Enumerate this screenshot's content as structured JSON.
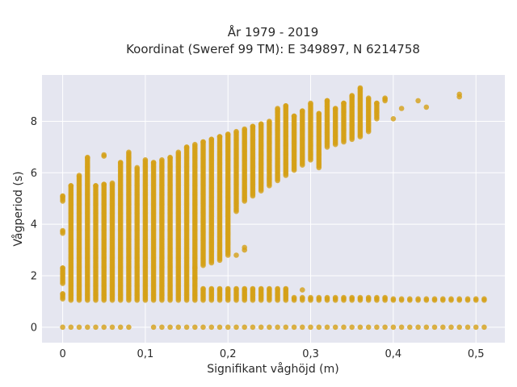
{
  "chart_data": {
    "type": "scatter",
    "title_line1": "År 1979 - 2019",
    "title_line2": "Koordinat (Sweref 99 TM): E 349897, N 6214758",
    "xlabel": "Signifikant våghöjd (m)",
    "ylabel": "Vågperiod (s)",
    "xlim": [
      -0.025,
      0.535
    ],
    "ylim": [
      -0.6,
      9.8
    ],
    "x_ticks": [
      0,
      0.1,
      0.2,
      0.3,
      0.4,
      0.5
    ],
    "x_tick_labels": [
      "0",
      "0,1",
      "0,2",
      "0,3",
      "0,4",
      "0,5"
    ],
    "y_ticks": [
      0,
      2,
      4,
      6,
      8
    ],
    "y_tick_labels": [
      "0",
      "2",
      "4",
      "6",
      "8"
    ],
    "grid": true,
    "plot_background": "#e5e6f0",
    "grid_color": "#ffffff",
    "marker_color": "#d4a017",
    "x_step": 0.01,
    "columns": [
      {
        "x": 0.0,
        "ranges": [
          [
            1.1,
            1.3
          ],
          [
            1.7,
            2.3
          ],
          [
            3.65,
            3.75
          ],
          [
            4.9,
            5.1
          ]
        ]
      },
      {
        "x": 0.01,
        "ranges": [
          [
            1.05,
            5.5
          ]
        ]
      },
      {
        "x": 0.02,
        "ranges": [
          [
            1.05,
            5.9
          ]
        ]
      },
      {
        "x": 0.03,
        "ranges": [
          [
            1.05,
            6.6
          ]
        ]
      },
      {
        "x": 0.04,
        "ranges": [
          [
            1.05,
            5.5
          ]
        ]
      },
      {
        "x": 0.05,
        "ranges": [
          [
            1.05,
            5.55
          ],
          [
            6.65,
            6.7
          ]
        ]
      },
      {
        "x": 0.06,
        "ranges": [
          [
            1.05,
            5.6
          ]
        ]
      },
      {
        "x": 0.07,
        "ranges": [
          [
            1.05,
            6.4
          ]
        ]
      },
      {
        "x": 0.08,
        "ranges": [
          [
            1.05,
            6.8
          ]
        ]
      },
      {
        "x": 0.09,
        "ranges": [
          [
            1.05,
            6.2
          ]
        ]
      },
      {
        "x": 0.1,
        "ranges": [
          [
            1.05,
            6.5
          ]
        ]
      },
      {
        "x": 0.11,
        "ranges": [
          [
            1.05,
            6.4
          ]
        ]
      },
      {
        "x": 0.12,
        "ranges": [
          [
            1.05,
            6.5
          ]
        ]
      },
      {
        "x": 0.13,
        "ranges": [
          [
            1.05,
            6.6
          ]
        ]
      },
      {
        "x": 0.14,
        "ranges": [
          [
            1.05,
            6.8
          ]
        ]
      },
      {
        "x": 0.15,
        "ranges": [
          [
            1.05,
            7.0
          ]
        ]
      },
      {
        "x": 0.16,
        "ranges": [
          [
            1.05,
            7.1
          ]
        ]
      },
      {
        "x": 0.17,
        "ranges": [
          [
            1.05,
            1.5
          ],
          [
            2.4,
            7.2
          ]
        ]
      },
      {
        "x": 0.18,
        "ranges": [
          [
            1.05,
            1.5
          ],
          [
            2.5,
            7.3
          ]
        ]
      },
      {
        "x": 0.19,
        "ranges": [
          [
            1.05,
            1.5
          ],
          [
            2.6,
            7.4
          ]
        ]
      },
      {
        "x": 0.2,
        "ranges": [
          [
            1.05,
            1.5
          ],
          [
            2.8,
            7.5
          ]
        ]
      },
      {
        "x": 0.21,
        "ranges": [
          [
            1.05,
            1.5
          ],
          [
            4.5,
            7.6
          ]
        ]
      },
      {
        "x": 0.22,
        "ranges": [
          [
            1.05,
            1.5
          ],
          [
            4.9,
            7.7
          ]
        ]
      },
      {
        "x": 0.23,
        "ranges": [
          [
            1.05,
            1.5
          ],
          [
            5.1,
            7.8
          ]
        ]
      },
      {
        "x": 0.24,
        "ranges": [
          [
            1.05,
            1.5
          ],
          [
            5.3,
            7.9
          ]
        ]
      },
      {
        "x": 0.25,
        "ranges": [
          [
            1.05,
            1.5
          ],
          [
            5.5,
            8.0
          ]
        ]
      },
      {
        "x": 0.26,
        "ranges": [
          [
            1.05,
            1.5
          ],
          [
            5.7,
            8.5
          ]
        ]
      },
      {
        "x": 0.27,
        "ranges": [
          [
            1.05,
            1.5
          ],
          [
            5.9,
            8.6
          ]
        ]
      },
      {
        "x": 0.28,
        "ranges": [
          [
            1.05,
            1.15
          ],
          [
            6.1,
            8.2
          ]
        ]
      },
      {
        "x": 0.29,
        "ranges": [
          [
            1.05,
            1.15
          ],
          [
            6.3,
            8.4
          ]
        ]
      },
      {
        "x": 0.3,
        "ranges": [
          [
            1.05,
            1.15
          ],
          [
            6.5,
            8.7
          ]
        ]
      },
      {
        "x": 0.31,
        "ranges": [
          [
            1.05,
            1.15
          ],
          [
            6.2,
            8.3
          ]
        ]
      },
      {
        "x": 0.32,
        "ranges": [
          [
            1.05,
            1.15
          ],
          [
            7.0,
            8.8
          ]
        ]
      },
      {
        "x": 0.33,
        "ranges": [
          [
            1.05,
            1.15
          ],
          [
            7.1,
            8.5
          ]
        ]
      },
      {
        "x": 0.34,
        "ranges": [
          [
            1.05,
            1.15
          ],
          [
            7.2,
            8.7
          ]
        ]
      },
      {
        "x": 0.35,
        "ranges": [
          [
            1.05,
            1.15
          ],
          [
            7.3,
            9.0
          ]
        ]
      },
      {
        "x": 0.36,
        "ranges": [
          [
            1.05,
            1.15
          ],
          [
            7.4,
            9.3
          ]
        ]
      },
      {
        "x": 0.37,
        "ranges": [
          [
            1.05,
            1.15
          ],
          [
            7.6,
            8.9
          ]
        ]
      },
      {
        "x": 0.38,
        "ranges": [
          [
            1.05,
            1.15
          ],
          [
            8.1,
            8.7
          ]
        ]
      },
      {
        "x": 0.39,
        "ranges": [
          [
            1.05,
            1.15
          ],
          [
            8.8,
            8.9
          ]
        ]
      },
      {
        "x": 0.4,
        "ranges": [
          [
            1.05,
            1.1
          ]
        ]
      },
      {
        "x": 0.41,
        "ranges": [
          [
            1.05,
            1.1
          ]
        ]
      },
      {
        "x": 0.42,
        "ranges": [
          [
            1.05,
            1.1
          ]
        ]
      },
      {
        "x": 0.43,
        "ranges": [
          [
            1.05,
            1.1
          ]
        ]
      },
      {
        "x": 0.44,
        "ranges": [
          [
            1.05,
            1.1
          ]
        ]
      },
      {
        "x": 0.45,
        "ranges": [
          [
            1.05,
            1.1
          ]
        ]
      },
      {
        "x": 0.46,
        "ranges": [
          [
            1.05,
            1.1
          ]
        ]
      },
      {
        "x": 0.47,
        "ranges": [
          [
            1.05,
            1.1
          ]
        ]
      },
      {
        "x": 0.48,
        "ranges": [
          [
            1.05,
            1.1
          ]
        ]
      },
      {
        "x": 0.49,
        "ranges": [
          [
            1.05,
            1.1
          ]
        ]
      },
      {
        "x": 0.5,
        "ranges": [
          [
            1.05,
            1.1
          ]
        ]
      },
      {
        "x": 0.51,
        "ranges": [
          [
            1.05,
            1.1
          ]
        ]
      }
    ],
    "extra_points": [
      [
        0.0,
        0.0
      ],
      [
        0.01,
        0.0
      ],
      [
        0.02,
        0.0
      ],
      [
        0.03,
        0.0
      ],
      [
        0.04,
        0.0
      ],
      [
        0.05,
        0.0
      ],
      [
        0.06,
        0.0
      ],
      [
        0.07,
        0.0
      ],
      [
        0.08,
        0.0
      ],
      [
        0.11,
        0.0
      ],
      [
        0.12,
        0.0
      ],
      [
        0.13,
        0.0
      ],
      [
        0.14,
        0.0
      ],
      [
        0.15,
        0.0
      ],
      [
        0.16,
        0.0
      ],
      [
        0.17,
        0.0
      ],
      [
        0.18,
        0.0
      ],
      [
        0.19,
        0.0
      ],
      [
        0.2,
        0.0
      ],
      [
        0.21,
        0.0
      ],
      [
        0.22,
        0.0
      ],
      [
        0.23,
        0.0
      ],
      [
        0.24,
        0.0
      ],
      [
        0.25,
        0.0
      ],
      [
        0.26,
        0.0
      ],
      [
        0.27,
        0.0
      ],
      [
        0.28,
        0.0
      ],
      [
        0.29,
        0.0
      ],
      [
        0.3,
        0.0
      ],
      [
        0.31,
        0.0
      ],
      [
        0.32,
        0.0
      ],
      [
        0.33,
        0.0
      ],
      [
        0.34,
        0.0
      ],
      [
        0.35,
        0.0
      ],
      [
        0.36,
        0.0
      ],
      [
        0.37,
        0.0
      ],
      [
        0.38,
        0.0
      ],
      [
        0.39,
        0.0
      ],
      [
        0.4,
        0.0
      ],
      [
        0.41,
        0.0
      ],
      [
        0.42,
        0.0
      ],
      [
        0.43,
        0.0
      ],
      [
        0.44,
        0.0
      ],
      [
        0.45,
        0.0
      ],
      [
        0.46,
        0.0
      ],
      [
        0.47,
        0.0
      ],
      [
        0.48,
        0.0
      ],
      [
        0.49,
        0.0
      ],
      [
        0.5,
        0.0
      ],
      [
        0.51,
        0.0
      ],
      [
        0.29,
        1.45
      ],
      [
        0.16,
        1.9
      ],
      [
        0.16,
        2.3
      ],
      [
        0.21,
        2.8
      ],
      [
        0.22,
        3.0
      ],
      [
        0.22,
        3.1
      ],
      [
        0.4,
        8.1
      ],
      [
        0.41,
        8.5
      ],
      [
        0.43,
        8.8
      ],
      [
        0.44,
        8.55
      ],
      [
        0.48,
        8.95
      ],
      [
        0.48,
        9.05
      ]
    ]
  }
}
